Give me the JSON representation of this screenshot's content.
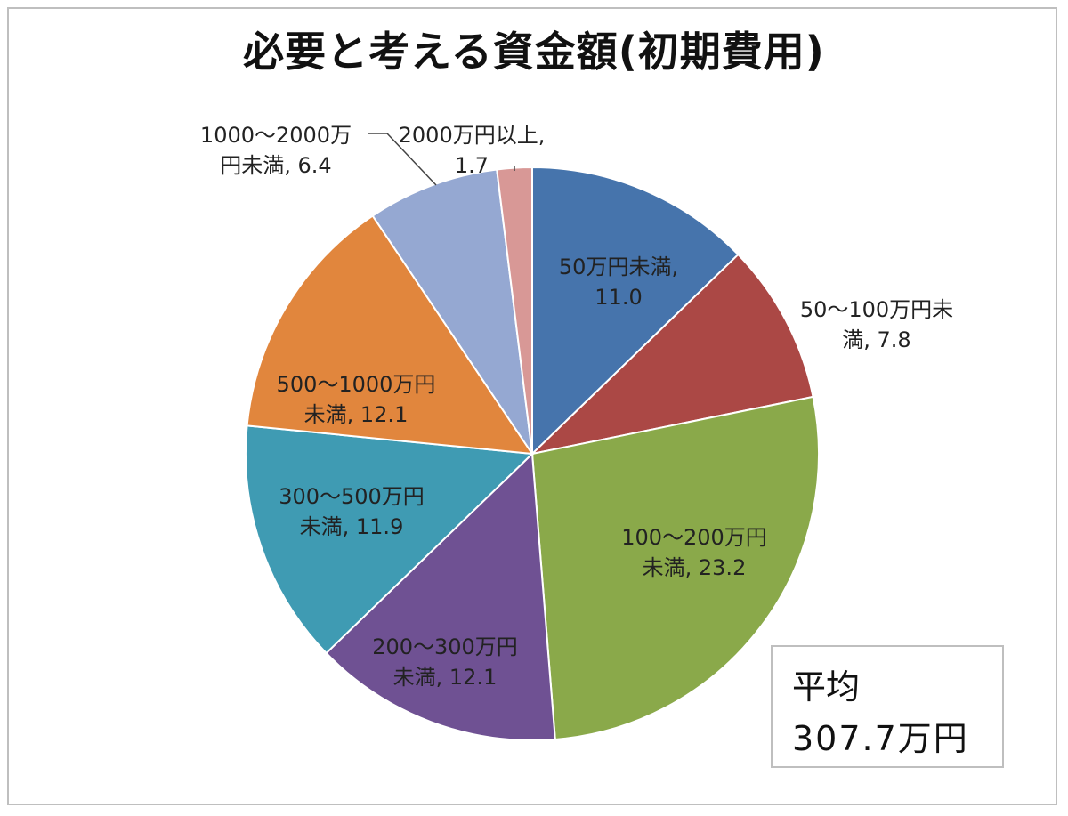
{
  "chart_data": {
    "type": "pie",
    "title": "必要と考える資金額(初期費用)",
    "slices": [
      {
        "line1": "50万円未満,",
        "line2": "11.0",
        "value": 11.0,
        "color": "#4674ac"
      },
      {
        "line1": "50〜100万円未",
        "line2": "満, 7.8",
        "value": 7.8,
        "color": "#ab4845"
      },
      {
        "line1": "100〜200万円",
        "line2": "未満, 23.2",
        "value": 23.2,
        "color": "#8aa94a"
      },
      {
        "line1": "200〜300万円",
        "line2": "未満, 12.1",
        "value": 12.1,
        "color": "#6f5193"
      },
      {
        "line1": "300〜500万円",
        "line2": "未満, 11.9",
        "value": 11.9,
        "color": "#3f9bb3"
      },
      {
        "line1": "500〜1000万円",
        "line2": "未満, 12.1",
        "value": 12.1,
        "color": "#e1863d"
      },
      {
        "line1": "1000〜2000万",
        "line2": "円未満, 6.4",
        "value": 6.4,
        "color": "#95a8d2"
      },
      {
        "line1": "2000万円以上,",
        "line2": "1.7",
        "value": 1.7,
        "color": "#d89896"
      }
    ]
  },
  "average": {
    "label": "平均",
    "value": "307.7万円"
  }
}
